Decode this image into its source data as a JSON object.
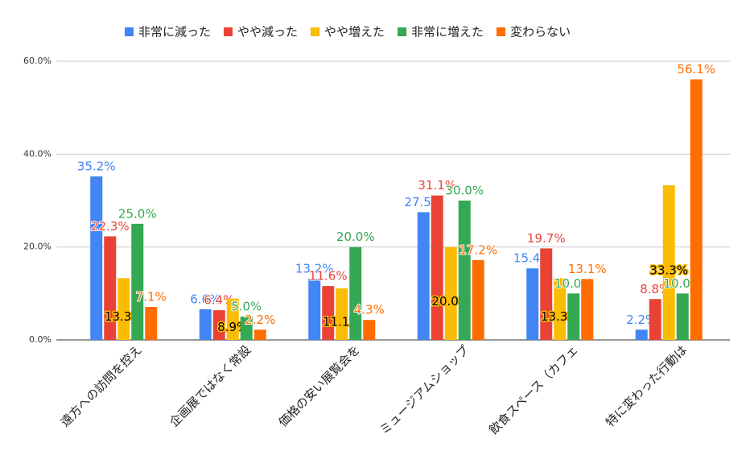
{
  "chart_data": {
    "type": "bar",
    "categories": [
      "遠方への訪問を控え",
      "企画展ではなく常設",
      "価格の安い展覧会を",
      "ミュージアムショップ",
      "飲食スペース（カフェ",
      "特に変わった行動は"
    ],
    "series": [
      {
        "name": "非常に減った",
        "color": "#4285f4",
        "values": [
          35.2,
          6.6,
          13.2,
          27.5,
          15.4,
          2.2
        ],
        "value_labels": [
          "35.2%",
          "6.6%",
          "13.2%",
          "27.5%",
          "15.4%",
          "2.2%"
        ]
      },
      {
        "name": "やや減った",
        "color": "#ea4335",
        "values": [
          22.3,
          6.4,
          11.6,
          31.1,
          19.7,
          8.8
        ],
        "value_labels": [
          "22.3%",
          "6.4%",
          "11.6%",
          "31.1%",
          "19.7%",
          "8.8%"
        ]
      },
      {
        "name": "やや増えた",
        "color": "#fbbc04",
        "values": [
          13.3,
          8.9,
          11.1,
          20.0,
          13.3,
          33.3
        ],
        "value_labels": [
          "13.3%",
          "8.9%",
          "11.1%",
          "20.0%",
          "13.3%",
          "33.3%"
        ]
      },
      {
        "name": "非常に増えた",
        "color": "#34a853",
        "values": [
          25.0,
          5.0,
          20.0,
          30.0,
          10.0,
          10.0
        ],
        "value_labels": [
          "25.0%",
          "5.0%",
          "20.0%",
          "30.0%",
          "10.0%",
          "10.0%"
        ]
      },
      {
        "name": "変わらない",
        "color": "#ff6d01",
        "values": [
          7.1,
          2.2,
          4.3,
          17.2,
          13.1,
          56.1
        ],
        "value_labels": [
          "7.1%",
          "2.2%",
          "4.3%",
          "17.2%",
          "13.1%",
          "56.1%"
        ]
      }
    ],
    "ylim": [
      0,
      60
    ],
    "yticks": [
      {
        "value": 0,
        "label": "0.0%"
      },
      {
        "value": 20,
        "label": "20.0%"
      },
      {
        "value": 40,
        "label": "40.0%"
      },
      {
        "value": 60,
        "label": "60.0%"
      }
    ],
    "grid": true,
    "legend": "top"
  }
}
